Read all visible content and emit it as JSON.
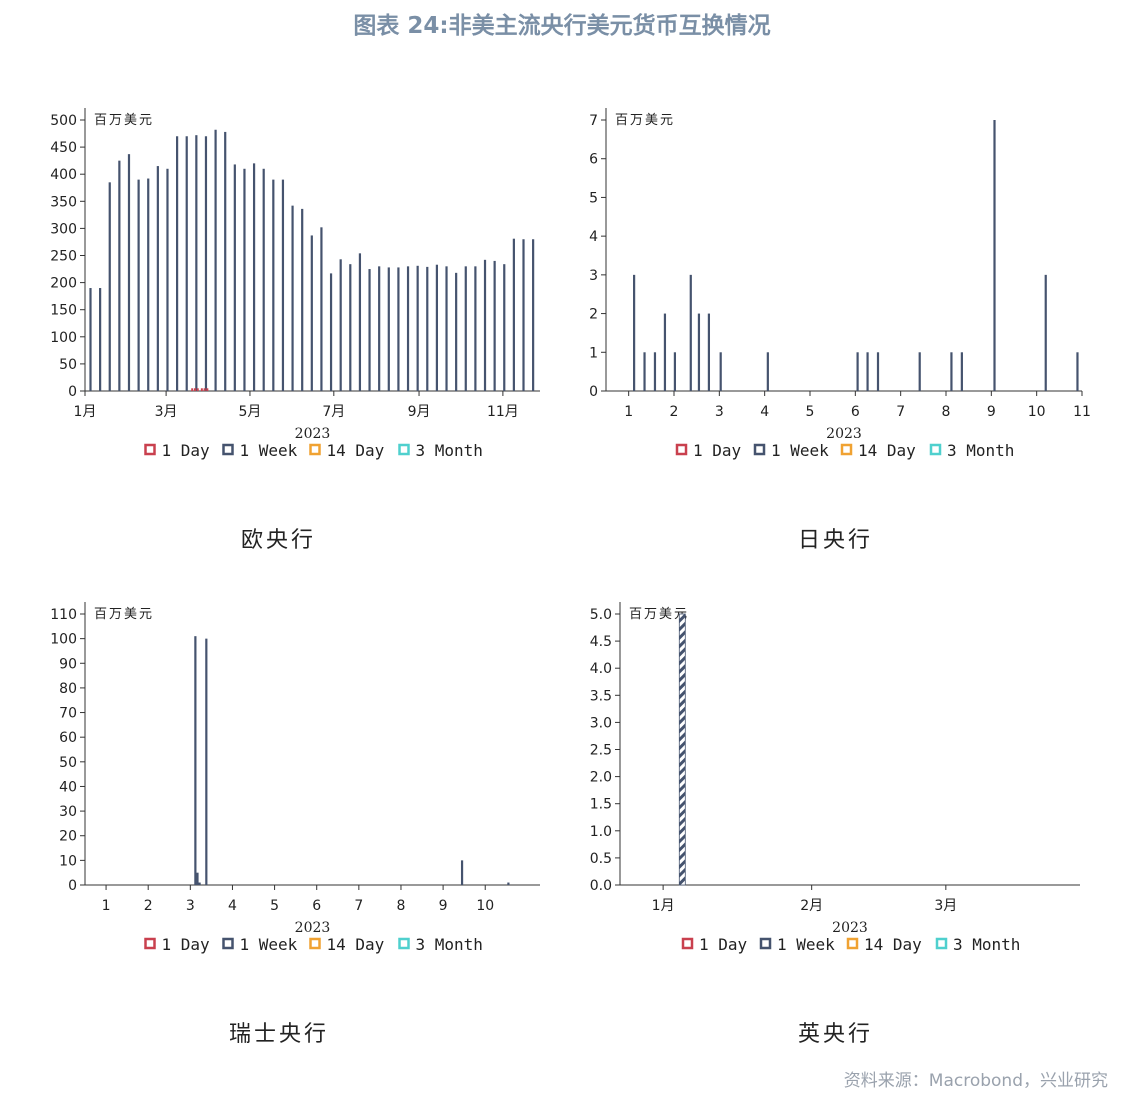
{
  "figure_title": "图表 24:非美主流央行美元货币互换情况",
  "source": "资料来源：Macrobond，兴业研究",
  "series_colors": {
    "1 Day": "#c9404e",
    "1 Week": "#45536e",
    "14 Day": "#f0a232",
    "3 Month": "#4fd0ce"
  },
  "chart_data": [
    {
      "type": "bar",
      "caption": "欧央行",
      "unit_label": "百万美元",
      "xlabel": "2023",
      "x_axis_type": "month-date",
      "x_ticks": [
        "1月",
        "3月",
        "5月",
        "7月",
        "9月",
        "11月"
      ],
      "xlim": [
        "2023-01-01",
        "2023-11-28"
      ],
      "ylim": [
        0,
        500
      ],
      "y_ticks": [
        0,
        50,
        100,
        150,
        200,
        250,
        300,
        350,
        400,
        450,
        500
      ],
      "legend": [
        "1 Day",
        "1 Week",
        "14 Day",
        "3 Month"
      ],
      "legend_placement": "bottom",
      "grid": false,
      "series": [
        {
          "name": "1 Week",
          "x": [
            "2023-01-05",
            "2023-01-12",
            "2023-01-19",
            "2023-01-26",
            "2023-02-02",
            "2023-02-09",
            "2023-02-16",
            "2023-02-23",
            "2023-03-02",
            "2023-03-09",
            "2023-03-16",
            "2023-03-23",
            "2023-03-30",
            "2023-04-06",
            "2023-04-13",
            "2023-04-20",
            "2023-04-27",
            "2023-05-04",
            "2023-05-11",
            "2023-05-18",
            "2023-05-25",
            "2023-06-01",
            "2023-06-08",
            "2023-06-15",
            "2023-06-22",
            "2023-06-29",
            "2023-07-06",
            "2023-07-13",
            "2023-07-20",
            "2023-07-27",
            "2023-08-03",
            "2023-08-10",
            "2023-08-17",
            "2023-08-24",
            "2023-08-31",
            "2023-09-07",
            "2023-09-14",
            "2023-09-21",
            "2023-09-28",
            "2023-10-05",
            "2023-10-12",
            "2023-10-19",
            "2023-10-26",
            "2023-11-02",
            "2023-11-09",
            "2023-11-16",
            "2023-11-23"
          ],
          "values": [
            190,
            190,
            385,
            425,
            437,
            390,
            392,
            415,
            410,
            470,
            470,
            472,
            470,
            482,
            478,
            418,
            410,
            420,
            410,
            390,
            390,
            342,
            336,
            287,
            302,
            217,
            243,
            234,
            254,
            225,
            230,
            228,
            228,
            230,
            231,
            229,
            233,
            230,
            218,
            230,
            230,
            242,
            240,
            234,
            281,
            280,
            280
          ]
        },
        {
          "name": "1 Day",
          "x": [
            "2023-03-20",
            "2023-03-22",
            "2023-03-24",
            "2023-03-27",
            "2023-03-29",
            "2023-03-31"
          ],
          "values": [
            5,
            5,
            5,
            5,
            5,
            5
          ]
        }
      ]
    },
    {
      "type": "bar",
      "caption": "日央行",
      "unit_label": "百万美元",
      "xlabel": "2023",
      "x_ticks": [
        "1",
        "2",
        "3",
        "4",
        "5",
        "6",
        "7",
        "8",
        "9",
        "10",
        "11"
      ],
      "xlim": [
        0.5,
        11
      ],
      "ylim": [
        0,
        7
      ],
      "y_ticks": [
        0,
        1,
        2,
        3,
        4,
        5,
        6,
        7
      ],
      "legend": [
        "1 Day",
        "1 Week",
        "14 Day",
        "3 Month"
      ],
      "legend_placement": "bottom",
      "grid": false,
      "series": [
        {
          "name": "1 Week",
          "x": [
            1.12,
            1.35,
            1.58,
            1.8,
            2.02,
            2.37,
            2.55,
            2.77,
            3.03,
            4.07,
            6.05,
            6.27,
            6.5,
            7.42,
            8.12,
            8.35,
            9.07,
            10.2,
            10.9
          ],
          "values": [
            3,
            1,
            1,
            2,
            1,
            3,
            2,
            2,
            1,
            1,
            1,
            1,
            1,
            1,
            1,
            1,
            7,
            3,
            1
          ]
        }
      ]
    },
    {
      "type": "bar",
      "caption": "瑞士央行",
      "unit_label": "百万美元",
      "xlabel": "2023",
      "x_ticks": [
        "1",
        "2",
        "3",
        "4",
        "5",
        "6",
        "7",
        "8",
        "9",
        "10"
      ],
      "xlim": [
        0.5,
        11.3
      ],
      "ylim": [
        0,
        110
      ],
      "y_ticks": [
        0,
        10,
        20,
        30,
        40,
        50,
        60,
        70,
        80,
        90,
        100,
        110
      ],
      "legend": [
        "1 Day",
        "1 Week",
        "14 Day",
        "3 Month"
      ],
      "legend_placement": "bottom",
      "grid": false,
      "series": [
        {
          "name": "1 Week",
          "x": [
            3.12,
            3.17,
            3.22,
            3.38,
            9.45,
            10.55
          ],
          "values": [
            101,
            5,
            1,
            100,
            10,
            1
          ]
        }
      ]
    },
    {
      "type": "bar",
      "caption": "英央行",
      "unit_label": "百万美元",
      "xlabel": "2023",
      "x_axis_type": "month-date",
      "x_ticks": [
        "1月",
        "2月",
        "3月"
      ],
      "xlim": [
        "2022-12-23",
        "2023-03-29"
      ],
      "ylim": [
        0,
        5.0
      ],
      "y_ticks": [
        "0.0",
        "0.5",
        "1.0",
        "1.5",
        "2.0",
        "2.5",
        "3.0",
        "3.5",
        "4.0",
        "4.5",
        "5.0"
      ],
      "legend": [
        "1 Day",
        "1 Week",
        "14 Day",
        "3 Month"
      ],
      "legend_placement": "bottom",
      "grid": false,
      "series": [
        {
          "name": "1 Week",
          "x": [
            "2023-01-05"
          ],
          "values": [
            5.0
          ],
          "pattern": "striped"
        }
      ]
    }
  ]
}
